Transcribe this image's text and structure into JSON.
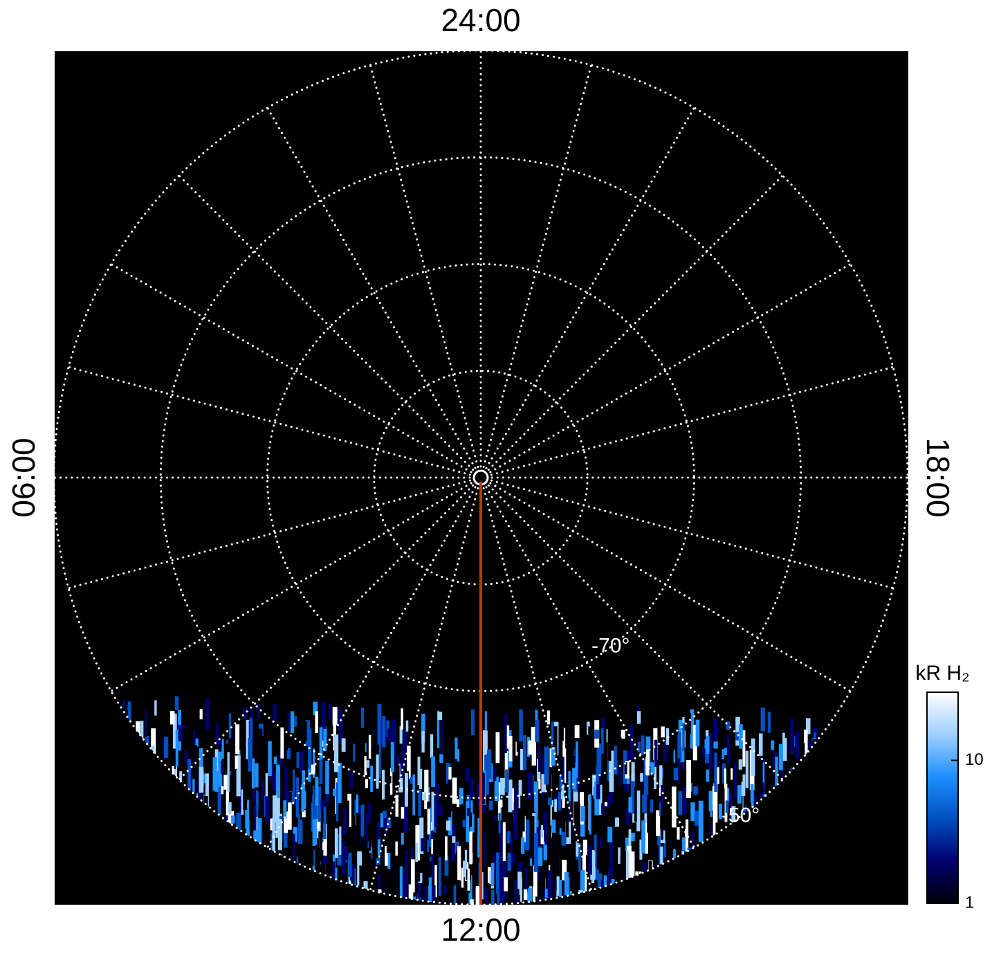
{
  "chart_data": {
    "type": "polar",
    "rlim": [
      -90,
      -50
    ],
    "lat_circles": [
      -80,
      -70,
      -60,
      -50
    ],
    "lat_labels": [
      {
        "value": -70,
        "label": "-70°"
      },
      {
        "value": -50,
        "label": "-50°"
      }
    ],
    "lt_lim": [
      0,
      24
    ],
    "lt_grid": [
      0,
      1,
      2,
      3,
      4,
      5,
      6,
      7,
      8,
      9,
      10,
      11,
      12,
      13,
      14,
      15,
      16,
      17,
      18,
      19,
      20,
      21,
      22,
      23
    ],
    "lt_labels": [
      {
        "value": 0,
        "label": "24:00"
      },
      {
        "value": 6,
        "label": "06:00"
      },
      {
        "value": 12,
        "label": "12:00"
      },
      {
        "value": 18,
        "label": "18:00"
      }
    ],
    "grid_color": "#ffffff",
    "highlight_lt": 12,
    "highlight_color": "#cc3300",
    "colorbar": {
      "label": "kR H₂",
      "clim": [
        1,
        30
      ],
      "log": true,
      "ticks": [
        1,
        10
      ],
      "colors": [
        "#000008",
        "#000070",
        "#0050c0",
        "#1e90ff",
        "#9fd0ff",
        "#ffffff"
      ]
    }
  }
}
